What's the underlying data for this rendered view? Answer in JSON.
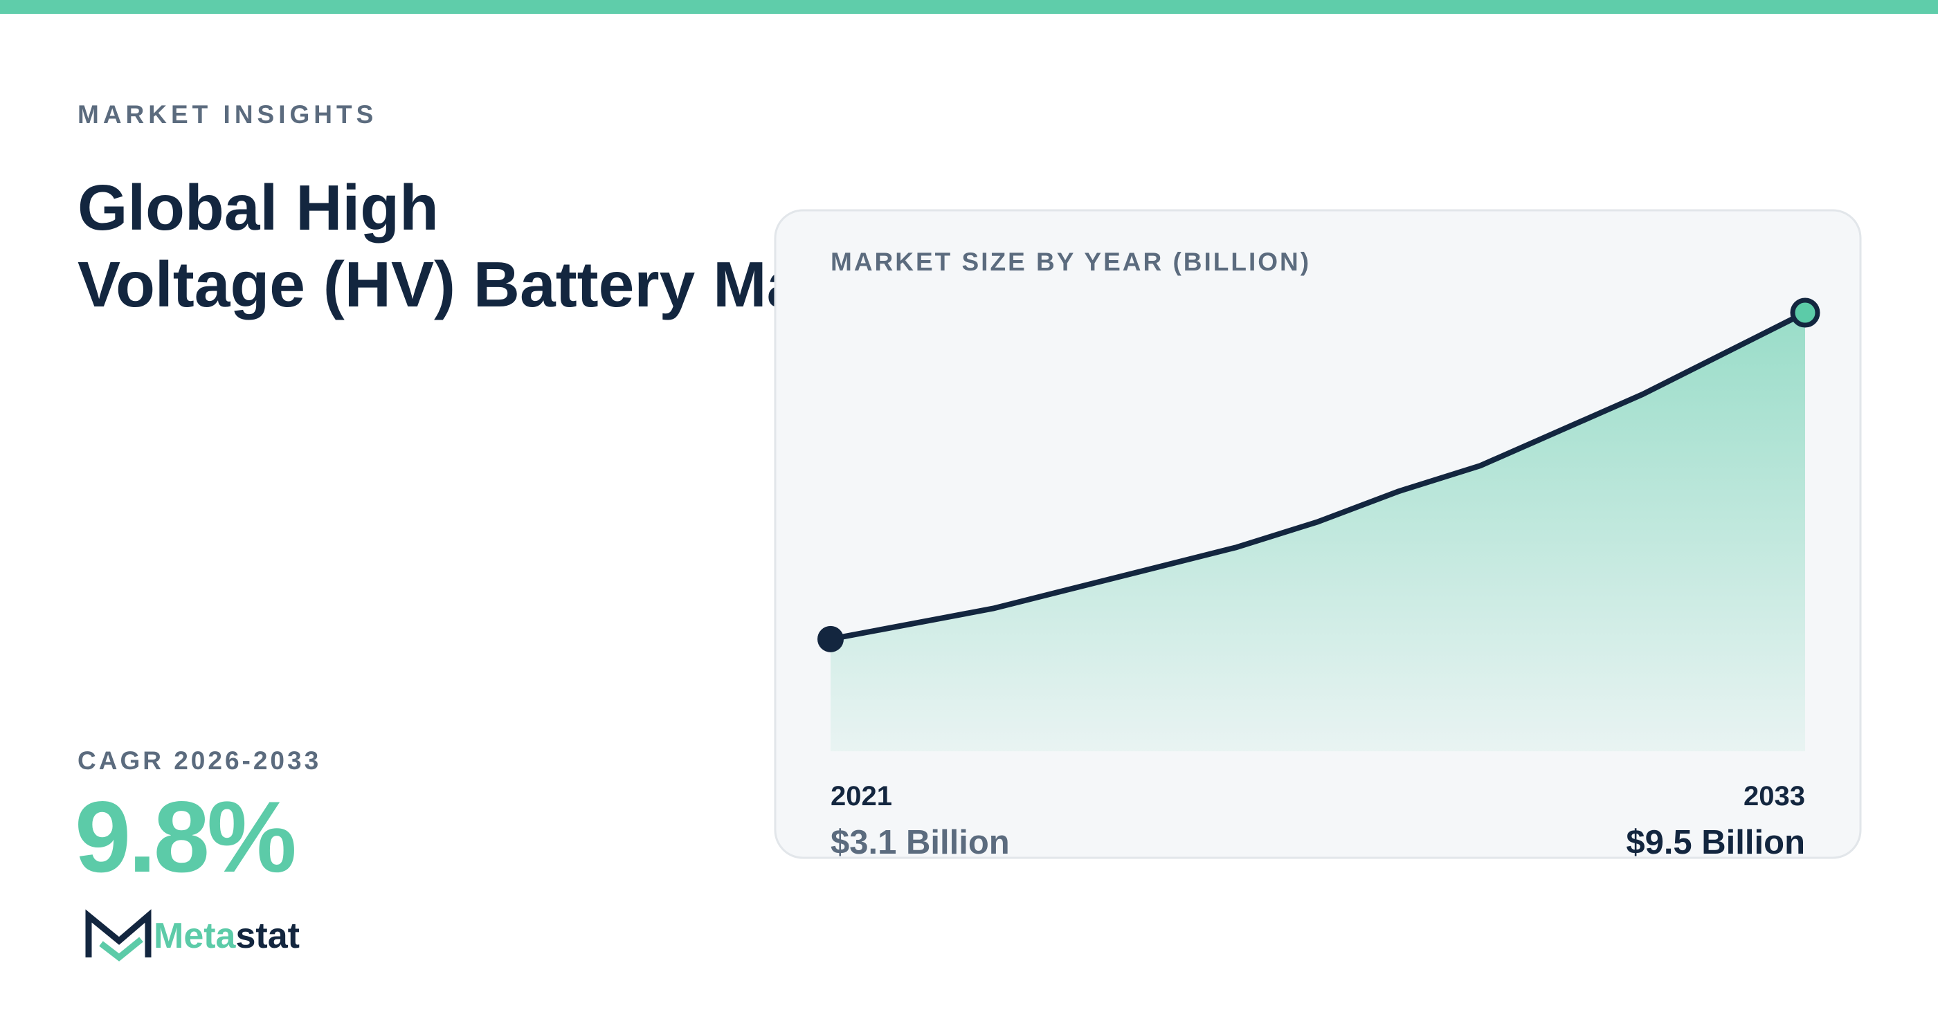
{
  "header": {
    "eyebrow": "MARKET INSIGHTS",
    "title_lines": [
      "Global High",
      "Voltage (HV) Battery Market"
    ]
  },
  "cagr": {
    "label": "CAGR 2026-2033",
    "value": "9.8%"
  },
  "logo": {
    "parts": [
      "Meta",
      "stat"
    ]
  },
  "chart_data": {
    "type": "line",
    "title": "MARKET SIZE BY YEAR (BILLION)",
    "x": [
      2021,
      2023,
      2026,
      2027,
      2028,
      2029,
      2031,
      2033
    ],
    "values": [
      3.1,
      3.7,
      4.9,
      5.4,
      6.0,
      6.5,
      7.9,
      9.5
    ],
    "value_labels": [
      "$3.1 Billion",
      null,
      null,
      null,
      null,
      null,
      null,
      "$9.5 Billion"
    ],
    "xlim": [
      2021,
      2033
    ],
    "ylim": [
      0.9,
      9.5
    ],
    "color": "#13263f",
    "fill": "#5ccba8"
  }
}
